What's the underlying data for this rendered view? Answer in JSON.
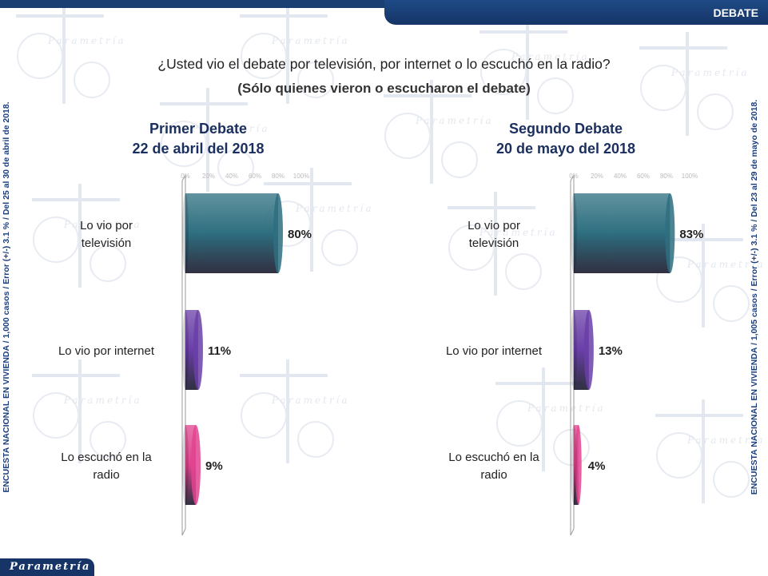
{
  "header": {
    "tag": "DEBATE"
  },
  "question": {
    "text": "¿Usted vio el debate por televisión, por internet o lo escuchó en la radio?",
    "note": "(Sólo quienes vieron o escucharon el debate)"
  },
  "watermark": "Parametría",
  "footer": {
    "logo": "Parametría"
  },
  "sidebar": {
    "left": "ENCUESTA NACIONAL EN VIVIENDA / 1,000 casos / Error (+/-) 3.1 % / Del 25 al 30 de abril de 2018.",
    "right": "ENCUESTA NACIONAL EN VIVIENDA / 1,005 casos / Error (+/-) 3.1 % / Del 23 al 29 de mayo de 2018."
  },
  "colors": {
    "television": "#2e6f80",
    "internet": "#6a3fa8",
    "radio": "#e0448f",
    "title": "#1b2f5e",
    "brand": "#163566"
  },
  "chart_data": [
    {
      "type": "bar",
      "orientation": "horizontal",
      "title": "Primer Debate",
      "subtitle": "22 de abril del 2018",
      "categories": [
        "Lo vio por televisión",
        "Lo vio por internet",
        "Lo escuchó en la radio"
      ],
      "values": [
        80,
        11,
        9
      ],
      "value_labels": [
        "80%",
        "11%",
        "9%"
      ],
      "xlim": [
        0,
        100
      ],
      "tick_labels": [
        "0%",
        "20%",
        "40%",
        "60%",
        "80%",
        "100%"
      ]
    },
    {
      "type": "bar",
      "orientation": "horizontal",
      "title": "Segundo Debate",
      "subtitle": "20 de mayo del 2018",
      "categories": [
        "Lo vio por televisión",
        "Lo vio por internet",
        "Lo escuchó en la radio"
      ],
      "values": [
        83,
        13,
        4
      ],
      "value_labels": [
        "83%",
        "13%",
        "4%"
      ],
      "xlim": [
        0,
        100
      ],
      "tick_labels": [
        "0%",
        "20%",
        "40%",
        "60%",
        "80%",
        "100%"
      ]
    }
  ]
}
